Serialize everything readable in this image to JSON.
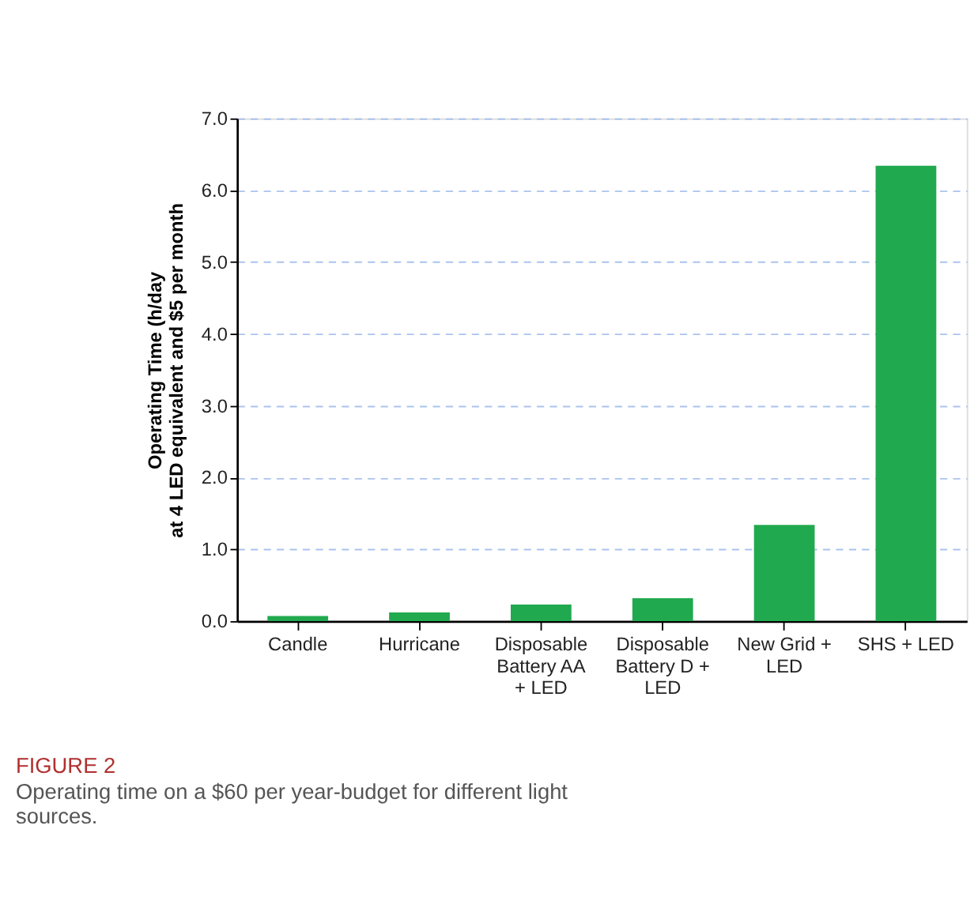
{
  "chart_data": {
    "type": "bar",
    "title": "FIGURE 2",
    "subtitle": "Operating time on a $60 per year-budget for different light sources.",
    "ylabel": "Operating Time (h/day\nat 4 LED equivalent and $5 per month",
    "categories": [
      "Candle",
      "Hurricane",
      "Disposable Battery AA + LED",
      "Disposable Battery D + LED",
      "New Grid + LED",
      "SHS + LED"
    ],
    "values": [
      0.07,
      0.12,
      0.23,
      0.32,
      1.34,
      6.34
    ],
    "color": "#21a94f",
    "ylim": [
      0,
      7
    ],
    "yticks": [
      {
        "value": 0,
        "label": "0.0"
      },
      {
        "value": 1,
        "label": "1.0"
      },
      {
        "value": 2,
        "label": "2.0"
      },
      {
        "value": 3,
        "label": "3.0"
      },
      {
        "value": 4,
        "label": "4.0"
      },
      {
        "value": 5,
        "label": "5.0"
      },
      {
        "value": 6,
        "label": "6.0"
      },
      {
        "value": 7,
        "label": "7.0"
      }
    ],
    "grid": "y"
  }
}
